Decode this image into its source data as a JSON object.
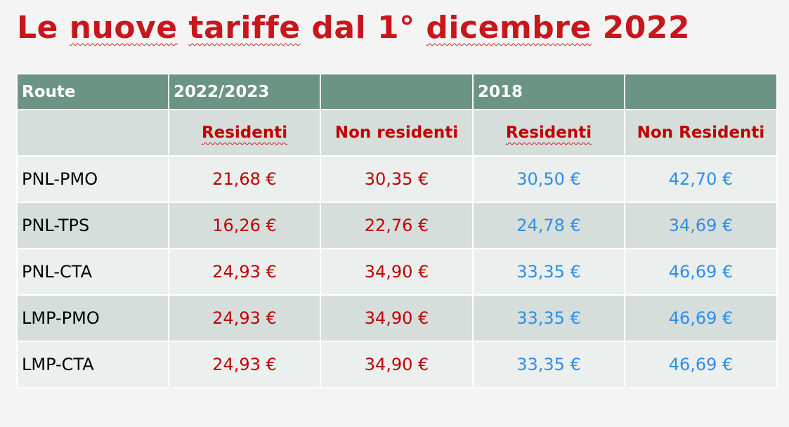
{
  "title": {
    "part1": "Le ",
    "word1": "nuove",
    "part2": " ",
    "word2": "tariffe",
    "part3": " dal 1° ",
    "word3": "dicembre",
    "part4": " 2022"
  },
  "colors": {
    "title_red": "#c8161d",
    "header_green": "#6b9485",
    "value_red": "#c00000",
    "value_blue": "#2e8ee8",
    "row_light": "#ebefed",
    "row_dark": "#d5dedb"
  },
  "table": {
    "header": [
      "Route",
      "2022/2023",
      "",
      "2018",
      ""
    ],
    "subheader": [
      "",
      "Residenti",
      "Non residenti",
      "Residenti",
      "Non Residenti"
    ],
    "rows": [
      {
        "route": "PNL-PMO",
        "res_2022": "21,68 €",
        "nonres_2022": "30,35 €",
        "res_2018": "30,50 €",
        "nonres_2018": "42,70 €"
      },
      {
        "route": "PNL-TPS",
        "res_2022": "16,26 €",
        "nonres_2022": "22,76 €",
        "res_2018": "24,78 €",
        "nonres_2018": "34,69 €"
      },
      {
        "route": "PNL-CTA",
        "res_2022": "24,93 €",
        "nonres_2022": "34,90 €",
        "res_2018": "33,35 €",
        "nonres_2018": "46,69 €"
      },
      {
        "route": "LMP-PMO",
        "res_2022": "24,93 €",
        "nonres_2022": "34,90 €",
        "res_2018": "33,35 €",
        "nonres_2018": "46,69 €"
      },
      {
        "route": "LMP-CTA",
        "res_2022": "24,93 €",
        "nonres_2022": "34,90 €",
        "res_2018": "33,35 €",
        "nonres_2018": "46,69 €"
      }
    ]
  }
}
